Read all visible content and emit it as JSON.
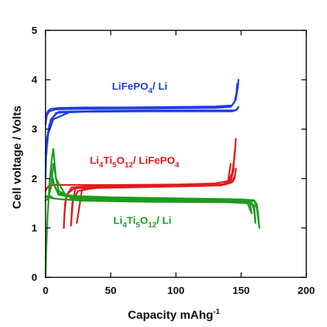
{
  "chart_data": {
    "type": "line",
    "title": "",
    "xlabel": {
      "main": "Capacity mAhg",
      "sup": "-1"
    },
    "ylabel": "Cell voltage / Volts",
    "xlim": [
      0,
      200
    ],
    "ylim": [
      0,
      5
    ],
    "xticks": [
      "0",
      "50",
      "100",
      "150",
      "200"
    ],
    "yticks": [
      "0",
      "1",
      "2",
      "3",
      "4",
      "5"
    ],
    "grid": false,
    "legend": "none",
    "series": [
      {
        "name": "LiFePO4 / Li",
        "label_parts": [
          [
            "LiFePO",
            ""
          ],
          [
            "4",
            "sub"
          ],
          [
            "/ Li",
            ""
          ]
        ],
        "label_pos": {
          "x": 51,
          "y": 3.8
        },
        "color": "#1f3fe0",
        "curves": [
          {
            "x": [
              0,
              1,
              2,
              4,
              10,
              30,
              60,
              100,
              130,
              143,
              146,
              147.5,
              148
            ],
            "y": [
              3.25,
              3.32,
              3.37,
              3.41,
              3.43,
              3.44,
              3.44,
              3.45,
              3.46,
              3.48,
              3.6,
              3.85,
              4.0
            ]
          },
          {
            "x": [
              148,
              147,
              145,
              140,
              120,
              80,
              40,
              10,
              4,
              2,
              1,
              0
            ],
            "y": [
              3.45,
              3.4,
              3.38,
              3.38,
              3.38,
              3.38,
              3.37,
              3.35,
              3.2,
              2.9,
              2.6,
              2.3
            ]
          },
          {
            "x": [
              0,
              1,
              3,
              8,
              30,
              80,
              130,
              142,
              145,
              146.5,
              147
            ],
            "y": [
              3.1,
              3.28,
              3.36,
              3.4,
              3.41,
              3.42,
              3.43,
              3.45,
              3.55,
              3.75,
              3.92
            ]
          },
          {
            "x": [
              147,
              146,
              143,
              130,
              80,
              30,
              8,
              3,
              1,
              0
            ],
            "y": [
              3.42,
              3.38,
              3.36,
              3.36,
              3.36,
              3.35,
              3.33,
              3.1,
              2.8,
              2.5
            ]
          },
          {
            "x": [
              0,
              0.5,
              2,
              6,
              20
            ],
            "y": [
              2.0,
              2.5,
              2.9,
              3.2,
              3.36
            ]
          }
        ]
      },
      {
        "name": "Li4Ti5O12 / LiFePO4",
        "label_parts": [
          [
            "Li",
            ""
          ],
          [
            "4",
            "sub"
          ],
          [
            "Ti",
            ""
          ],
          [
            "5",
            "sub"
          ],
          [
            "O",
            ""
          ],
          [
            "12",
            "sub"
          ],
          [
            "/ LiFePO",
            ""
          ],
          [
            "4",
            "sub"
          ]
        ],
        "label_pos": {
          "x": 34,
          "y": 2.3
        },
        "color": "#e21b1b",
        "curves": [
          {
            "x": [
              0,
              1,
              2,
              4,
              8,
              20,
              60,
              100,
              130,
              140,
              143,
              145,
              146
            ],
            "y": [
              1.75,
              1.8,
              1.84,
              1.86,
              1.87,
              1.87,
              1.87,
              1.88,
              1.9,
              1.95,
              2.1,
              2.45,
              2.8
            ]
          },
          {
            "x": [
              146,
              145,
              143,
              140,
              130,
              100,
              60,
              30,
              20,
              16,
              14.5,
              14
            ],
            "y": [
              2.2,
              2.0,
              1.92,
              1.9,
              1.87,
              1.86,
              1.85,
              1.84,
              1.82,
              1.65,
              1.3,
              1.0
            ]
          },
          {
            "x": [
              14,
              15,
              17,
              22,
              40,
              100,
              135,
              142,
              144,
              145
            ],
            "y": [
              1.0,
              1.5,
              1.7,
              1.8,
              1.84,
              1.85,
              1.87,
              1.95,
              2.15,
              2.55
            ]
          },
          {
            "x": [
              145,
              143,
              138,
              120,
              60,
              30,
              23,
              20.5,
              19.5
            ],
            "y": [
              2.05,
              1.93,
              1.88,
              1.85,
              1.83,
              1.82,
              1.8,
              1.5,
              1.05
            ]
          },
          {
            "x": [
              19.5,
              21,
              25,
              40,
              100,
              135,
              140,
              142
            ],
            "y": [
              1.05,
              1.55,
              1.75,
              1.82,
              1.84,
              1.86,
              1.95,
              2.3
            ]
          },
          {
            "x": [
              142,
              140,
              130,
              80,
              40,
              28,
              24
            ],
            "y": [
              1.98,
              1.9,
              1.86,
              1.83,
              1.81,
              1.78,
              1.1
            ]
          }
        ]
      },
      {
        "name": "Li4Ti5O12 / Li",
        "label_parts": [
          [
            "Li",
            ""
          ],
          [
            "4",
            "sub"
          ],
          [
            "Ti",
            ""
          ],
          [
            "5",
            "sub"
          ],
          [
            "O",
            ""
          ],
          [
            "12",
            "sub"
          ],
          [
            "/ Li",
            ""
          ]
        ],
        "label_pos": {
          "x": 52,
          "y": 1.08
        },
        "color": "#1e9a1e",
        "curves": [
          {
            "x": [
              0,
              0.5,
              1.5,
              3,
              5,
              6,
              8,
              15,
              30,
              60,
              100,
              140,
              155,
              160,
              162,
              163,
              164
            ],
            "y": [
              0.0,
              0.5,
              1.2,
              1.9,
              2.45,
              2.6,
              2.0,
              1.68,
              1.6,
              1.57,
              1.56,
              1.55,
              1.55,
              1.55,
              1.4,
              1.2,
              1.0
            ]
          },
          {
            "x": [
              164,
              163,
              162,
              160,
              150,
              100,
              50,
              20,
              10,
              6,
              4
            ],
            "y": [
              1.0,
              1.3,
              1.48,
              1.56,
              1.58,
              1.6,
              1.62,
              1.65,
              1.7,
              1.9,
              2.2
            ]
          },
          {
            "x": [
              0,
              2,
              4,
              6,
              10,
              20,
              60,
              110,
              150,
              158,
              160,
              161
            ],
            "y": [
              1.55,
              1.6,
              1.8,
              2.3,
              1.75,
              1.6,
              1.56,
              1.54,
              1.53,
              1.52,
              1.35,
              1.1
            ]
          },
          {
            "x": [
              161,
              160,
              155,
              120,
              60,
              20,
              10,
              7,
              5
            ],
            "y": [
              1.1,
              1.45,
              1.56,
              1.58,
              1.6,
              1.63,
              1.67,
              1.85,
              2.05
            ]
          },
          {
            "x": [
              0,
              1,
              3,
              6,
              12,
              30,
              80,
              140,
              155,
              158
            ],
            "y": [
              1.62,
              1.64,
              1.66,
              1.6,
              1.58,
              1.55,
              1.53,
              1.52,
              1.5,
              1.3
            ]
          },
          {
            "x": [
              158,
              157,
              150,
              100,
              40,
              12,
              5,
              2,
              0
            ],
            "y": [
              1.3,
              1.48,
              1.52,
              1.54,
              1.56,
              1.58,
              1.6,
              1.62,
              1.64
            ]
          }
        ]
      }
    ]
  },
  "colors": {
    "axis": "#111111"
  }
}
